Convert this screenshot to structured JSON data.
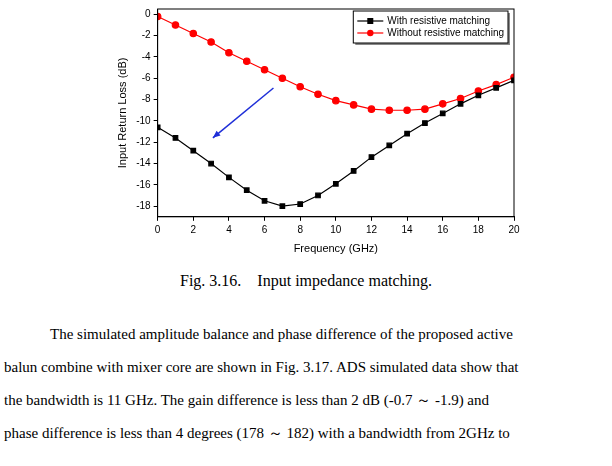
{
  "chart_data": {
    "type": "line",
    "x_label": "Frequency (GHz)",
    "y_label": "Input Return Loss (dB)",
    "x": [
      0,
      1,
      2,
      3,
      4,
      5,
      6,
      7,
      8,
      9,
      10,
      11,
      12,
      13,
      14,
      15,
      16,
      17,
      18,
      19,
      20
    ],
    "series": [
      {
        "name": "With resistive matching",
        "color": "#000000",
        "marker": "square",
        "values": [
          -10.6,
          -11.6,
          -12.8,
          -14.0,
          -15.3,
          -16.5,
          -17.5,
          -18.0,
          -17.8,
          -17.0,
          -15.9,
          -14.7,
          -13.4,
          -12.3,
          -11.2,
          -10.2,
          -9.3,
          -8.4,
          -7.6,
          -6.9,
          -6.2
        ]
      },
      {
        "name": "Without resistive matching",
        "color": "#ff0000",
        "marker": "circle",
        "values": [
          -0.2,
          -1.0,
          -1.8,
          -2.6,
          -3.6,
          -4.4,
          -5.2,
          -6.0,
          -6.8,
          -7.5,
          -8.1,
          -8.5,
          -8.9,
          -9.0,
          -9.0,
          -8.9,
          -8.4,
          -7.9,
          -7.2,
          -6.6,
          -5.9
        ]
      }
    ],
    "xlim": [
      0,
      20
    ],
    "xticks": [
      0,
      2,
      4,
      6,
      8,
      10,
      12,
      14,
      16,
      18,
      20
    ],
    "ylim": [
      -19,
      0.5
    ],
    "yticks": [
      -18,
      -16,
      -14,
      -12,
      -10,
      -8,
      -6,
      -4,
      -2,
      0
    ],
    "grid": false,
    "legend": "upper right"
  },
  "caption": {
    "label": "Fig. 3.16.",
    "text": "Input impedance matching."
  },
  "paragraph": [
    "The simulated amplitude balance and phase difference of the proposed active",
    "balun combine with mixer core are shown in Fig. 3.17. ADS simulated data show that",
    "the bandwidth is 11 GHz. The gain difference is less than 2 dB (-0.7 ～ -1.9) and",
    "phase difference is less than 4 degrees (178 ～ 182) with a bandwidth from 2GHz to"
  ]
}
